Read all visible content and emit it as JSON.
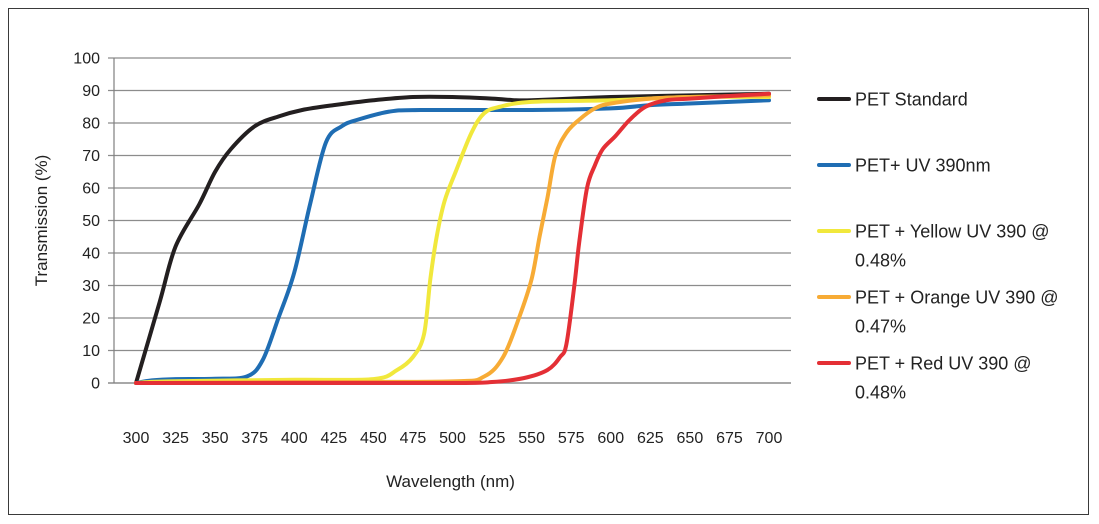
{
  "chart_data": {
    "type": "line",
    "title": "",
    "xlabel": "Wavelength (nm)",
    "ylabel": "Transmission (%)",
    "xlim": [
      300,
      700
    ],
    "ylim": [
      0,
      100
    ],
    "x_ticks": [
      "300",
      "325",
      "350",
      "375",
      "400",
      "425",
      "450",
      "475",
      "500",
      "525",
      "550",
      "575",
      "600",
      "625",
      "650",
      "675",
      "700"
    ],
    "y_ticks": [
      "0",
      "10",
      "20",
      "30",
      "40",
      "50",
      "60",
      "70",
      "80",
      "90",
      "100"
    ],
    "grid": "horizontal",
    "legend_position": "right",
    "series": [
      {
        "name": "PET Standard",
        "name_lines": [
          "PET Standard"
        ],
        "color": "#231f20",
        "points": [
          [
            300,
            0
          ],
          [
            315,
            25
          ],
          [
            325,
            42
          ],
          [
            340,
            55
          ],
          [
            350,
            65
          ],
          [
            360,
            72
          ],
          [
            375,
            79
          ],
          [
            390,
            82
          ],
          [
            405,
            84
          ],
          [
            425,
            85.5
          ],
          [
            450,
            87
          ],
          [
            475,
            88
          ],
          [
            500,
            88
          ],
          [
            525,
            87.5
          ],
          [
            540,
            87
          ],
          [
            550,
            87
          ],
          [
            575,
            87.5
          ],
          [
            600,
            88
          ],
          [
            650,
            88.5
          ],
          [
            700,
            89
          ]
        ]
      },
      {
        "name": "PET+ UV 390nm",
        "name_lines": [
          "PET+ UV 390nm"
        ],
        "color": "#1f6db3",
        "points": [
          [
            300,
            0
          ],
          [
            310,
            0.8
          ],
          [
            325,
            1.2
          ],
          [
            350,
            1.3
          ],
          [
            370,
            2
          ],
          [
            380,
            7
          ],
          [
            390,
            20
          ],
          [
            400,
            34
          ],
          [
            410,
            55
          ],
          [
            420,
            74
          ],
          [
            430,
            79
          ],
          [
            440,
            81
          ],
          [
            460,
            83.5
          ],
          [
            480,
            84
          ],
          [
            550,
            84
          ],
          [
            600,
            84.5
          ],
          [
            625,
            85.5
          ],
          [
            650,
            86
          ],
          [
            700,
            87
          ]
        ]
      },
      {
        "name": "PET + Yellow UV 390 @ 0.48%",
        "name_lines": [
          "PET + Yellow UV 390 @",
          "0.48%"
        ],
        "color": "#f1e83c",
        "points": [
          [
            300,
            0
          ],
          [
            320,
            0.5
          ],
          [
            400,
            1
          ],
          [
            450,
            1.2
          ],
          [
            465,
            4
          ],
          [
            475,
            8
          ],
          [
            482,
            15
          ],
          [
            486,
            32
          ],
          [
            490,
            45
          ],
          [
            495,
            56
          ],
          [
            502,
            65
          ],
          [
            512,
            77
          ],
          [
            520,
            83
          ],
          [
            530,
            85
          ],
          [
            550,
            86.5
          ],
          [
            600,
            87
          ],
          [
            650,
            88
          ],
          [
            700,
            88
          ]
        ]
      },
      {
        "name": "PET + Orange UV 390 @ 0.47%",
        "name_lines": [
          "PET + Orange UV 390 @",
          "0.47%"
        ],
        "color": "#f7ab35",
        "points": [
          [
            300,
            0
          ],
          [
            400,
            0.3
          ],
          [
            500,
            0.5
          ],
          [
            520,
            2
          ],
          [
            532,
            8
          ],
          [
            542,
            20
          ],
          [
            550,
            32
          ],
          [
            555,
            45
          ],
          [
            560,
            57
          ],
          [
            565,
            70
          ],
          [
            572,
            77
          ],
          [
            580,
            81
          ],
          [
            590,
            84.5
          ],
          [
            600,
            86
          ],
          [
            625,
            87.5
          ],
          [
            650,
            88
          ],
          [
            700,
            88.5
          ]
        ]
      },
      {
        "name": "PET + Red UV 390 @ 0.48%",
        "name_lines": [
          "PET + Red UV 390 @",
          "0.48%"
        ],
        "color": "#e42f35",
        "points": [
          [
            300,
            0
          ],
          [
            400,
            0
          ],
          [
            500,
            0
          ],
          [
            525,
            0.3
          ],
          [
            545,
            1.5
          ],
          [
            560,
            4
          ],
          [
            568,
            8
          ],
          [
            572,
            12
          ],
          [
            577,
            30
          ],
          [
            580,
            43
          ],
          [
            585,
            60
          ],
          [
            590,
            67
          ],
          [
            595,
            72
          ],
          [
            603,
            76
          ],
          [
            612,
            81
          ],
          [
            622,
            85
          ],
          [
            635,
            87
          ],
          [
            650,
            87.5
          ],
          [
            675,
            88.3
          ],
          [
            700,
            89
          ]
        ]
      }
    ]
  }
}
